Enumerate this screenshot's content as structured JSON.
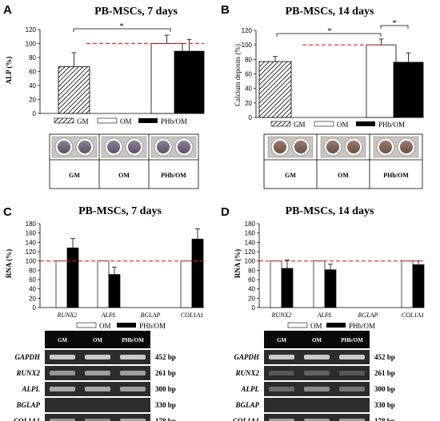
{
  "panels": [
    {
      "id": "A",
      "title": "PB-MSCs, 7 days",
      "ylabel": "ALP (%)",
      "ylim": [
        0,
        120
      ],
      "yticks": [
        0,
        20,
        40,
        60,
        80,
        100,
        120
      ],
      "legend": [
        "GM",
        "OM",
        "PHb/OM"
      ],
      "significance": "*",
      "table_labels": [
        "GM",
        "OM",
        "PHb/OM"
      ]
    },
    {
      "id": "B",
      "title": "PB-MSCs, 14 days",
      "ylabel": "Calcium deposits (%)",
      "ylim": [
        0,
        120
      ],
      "yticks": [
        0,
        20,
        40,
        60,
        80,
        100,
        120
      ],
      "legend": [
        "GM",
        "OM",
        "PHb/OM"
      ],
      "significance": [
        "*",
        "*"
      ],
      "table_labels": [
        "GM",
        "OM",
        "PHb/OM"
      ]
    },
    {
      "id": "C",
      "title": "PB-MSCs, 7 days",
      "ylabel": "RNA (%)",
      "ylim": [
        0,
        180
      ],
      "yticks": [
        0,
        20,
        40,
        60,
        80,
        100,
        120,
        140,
        160,
        180
      ],
      "categories": [
        "RUNX2",
        "ALPL",
        "BGLAP",
        "COL1A1"
      ],
      "legend": [
        "OM",
        "PHb/OM"
      ],
      "gel_headers": [
        "GM",
        "OM",
        "PHb/OM"
      ],
      "genes": [
        "GAPDH",
        "RUNX2",
        "ALPL",
        "BGLAP",
        "COL1A1"
      ],
      "bp": [
        "452 bp",
        "261 bp",
        "300 bp",
        "330 bp",
        "178 bp"
      ]
    },
    {
      "id": "D",
      "title": "PB-MSCs, 14 days",
      "ylabel": "RNA (%)",
      "ylim": [
        0,
        180
      ],
      "yticks": [
        0,
        20,
        40,
        60,
        80,
        100,
        120,
        140,
        160,
        180
      ],
      "categories": [
        "RUNX2",
        "ALPL",
        "BGLAP",
        "COL1A1"
      ],
      "legend": [
        "OM",
        "PHb/OM"
      ],
      "gel_headers": [
        "GM",
        "OM",
        "PHb/OM"
      ],
      "genes": [
        "GAPDH",
        "RUNX2",
        "ALPL",
        "BGLAP",
        "COL1A1"
      ],
      "bp": [
        "452 bp",
        "261 bp",
        "300 bp",
        "330 bp",
        "178 bp"
      ]
    }
  ],
  "chart_data": [
    {
      "type": "bar",
      "panel": "A",
      "categories": [
        "GM",
        "OM",
        "PHb/OM"
      ],
      "values": [
        67,
        100,
        89
      ],
      "errors": [
        20,
        12,
        17
      ],
      "reference_line": 100,
      "ylim": [
        0,
        120
      ]
    },
    {
      "type": "bar",
      "panel": "B",
      "categories": [
        "GM",
        "OM",
        "PHb/OM"
      ],
      "values": [
        77,
        100,
        76
      ],
      "errors": [
        7,
        8,
        13
      ],
      "reference_line": 100,
      "ylim": [
        0,
        120
      ]
    },
    {
      "type": "bar",
      "panel": "C",
      "categories": [
        "RUNX2",
        "ALPL",
        "BGLAP",
        "COL1A1"
      ],
      "series": [
        {
          "name": "OM",
          "values": [
            100,
            100,
            0,
            100
          ],
          "errors": [
            0,
            0,
            0,
            0
          ]
        },
        {
          "name": "PHb/OM",
          "values": [
            128,
            71,
            0,
            147
          ],
          "errors": [
            20,
            16,
            0,
            22
          ]
        }
      ],
      "reference_line": 100,
      "ylim": [
        0,
        180
      ]
    },
    {
      "type": "bar",
      "panel": "D",
      "categories": [
        "RUNX2",
        "ALPL",
        "BGLAP",
        "COL1A1"
      ],
      "series": [
        {
          "name": "OM",
          "values": [
            100,
            100,
            0,
            100
          ],
          "errors": [
            0,
            0,
            0,
            0
          ]
        },
        {
          "name": "PHb/OM",
          "values": [
            84,
            81,
            0,
            92
          ],
          "errors": [
            18,
            12,
            0,
            8
          ]
        }
      ],
      "reference_line": 100,
      "ylim": [
        0,
        180
      ]
    }
  ]
}
